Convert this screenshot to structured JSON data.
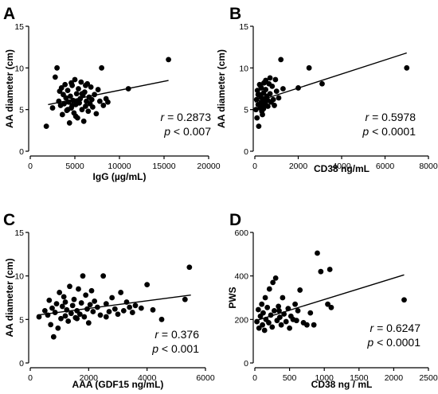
{
  "chart_data": [
    {
      "type": "scatter",
      "panel": "A",
      "xlabel": "IgG (µg/mL)",
      "ylabel": "AA diameter (cm)",
      "xlim": [
        0,
        20000
      ],
      "ylim": [
        0,
        15
      ],
      "xticks": [
        "0",
        "5000",
        "10000",
        "15000",
        "20000"
      ],
      "yticks": [
        "0",
        "5",
        "10",
        "15"
      ],
      "fit": {
        "x": [
          2000,
          15500
        ],
        "y": [
          5.6,
          8.5
        ]
      },
      "stat_r": "= 0.2873",
      "stat_p": "< 0.007",
      "points": [
        [
          1800,
          3.0
        ],
        [
          2500,
          5.2
        ],
        [
          2800,
          8.9
        ],
        [
          3000,
          10.0
        ],
        [
          3200,
          6.0
        ],
        [
          3300,
          7.2
        ],
        [
          3400,
          5.5
        ],
        [
          3500,
          7.6
        ],
        [
          3600,
          4.4
        ],
        [
          3700,
          6.8
        ],
        [
          3800,
          5.7
        ],
        [
          3900,
          8.0
        ],
        [
          4000,
          6.4
        ],
        [
          4100,
          4.9
        ],
        [
          4200,
          7.3
        ],
        [
          4300,
          5.9
        ],
        [
          4400,
          3.4
        ],
        [
          4500,
          6.6
        ],
        [
          4600,
          5.2
        ],
        [
          4700,
          7.9
        ],
        [
          4800,
          6.1
        ],
        [
          4900,
          4.6
        ],
        [
          5000,
          8.6
        ],
        [
          5100,
          5.6
        ],
        [
          5200,
          6.9
        ],
        [
          5300,
          4.0
        ],
        [
          5400,
          7.5
        ],
        [
          5500,
          5.8
        ],
        [
          5600,
          6.3
        ],
        [
          5700,
          8.3
        ],
        [
          5800,
          5.0
        ],
        [
          5900,
          6.7
        ],
        [
          6000,
          3.6
        ],
        [
          6100,
          7.1
        ],
        [
          6200,
          5.4
        ],
        [
          6300,
          6.0
        ],
        [
          6400,
          8.1
        ],
        [
          6500,
          4.8
        ],
        [
          6600,
          6.5
        ],
        [
          6700,
          5.7
        ],
        [
          6800,
          7.7
        ],
        [
          6900,
          6.2
        ],
        [
          7000,
          5.3
        ],
        [
          7200,
          6.8
        ],
        [
          7400,
          4.5
        ],
        [
          7600,
          7.4
        ],
        [
          7800,
          6.0
        ],
        [
          8000,
          10.0
        ],
        [
          8200,
          5.5
        ],
        [
          8500,
          6.3
        ],
        [
          8700,
          5.9
        ],
        [
          11000,
          7.5
        ],
        [
          15500,
          11.0
        ],
        [
          4200,
          5.0
        ],
        [
          4700,
          5.5
        ],
        [
          5300,
          6.0
        ],
        [
          5800,
          6.9
        ],
        [
          6200,
          7.9
        ],
        [
          4600,
          8.2
        ],
        [
          5100,
          4.2
        ]
      ]
    },
    {
      "type": "scatter",
      "panel": "B",
      "xlabel": "CD38 ng/mL",
      "ylabel": "AA diameter (cm)",
      "xlim": [
        0,
        8000
      ],
      "ylim": [
        0,
        15
      ],
      "xticks": [
        "0",
        "2000",
        "4000",
        "6000",
        "8000"
      ],
      "yticks": [
        "0",
        "5",
        "10",
        "15"
      ],
      "fit": {
        "x": [
          0,
          7000
        ],
        "y": [
          5.9,
          11.8
        ]
      },
      "stat_r": "= 0.5978",
      "stat_p": "< 0.0001",
      "points": [
        [
          50,
          5.0
        ],
        [
          80,
          6.2
        ],
        [
          100,
          4.0
        ],
        [
          120,
          7.3
        ],
        [
          150,
          5.6
        ],
        [
          180,
          3.0
        ],
        [
          200,
          6.8
        ],
        [
          220,
          8.0
        ],
        [
          250,
          5.2
        ],
        [
          280,
          6.5
        ],
        [
          300,
          7.6
        ],
        [
          320,
          4.8
        ],
        [
          350,
          6.0
        ],
        [
          380,
          5.5
        ],
        [
          400,
          7.0
        ],
        [
          420,
          8.2
        ],
        [
          450,
          6.3
        ],
        [
          480,
          5.8
        ],
        [
          500,
          7.4
        ],
        [
          550,
          6.6
        ],
        [
          600,
          5.4
        ],
        [
          650,
          8.1
        ],
        [
          700,
          6.9
        ],
        [
          750,
          5.9
        ],
        [
          800,
          7.8
        ],
        [
          850,
          6.2
        ],
        [
          900,
          5.5
        ],
        [
          950,
          8.6
        ],
        [
          1000,
          7.2
        ],
        [
          1100,
          6.4
        ],
        [
          1200,
          11.0
        ],
        [
          1300,
          7.5
        ],
        [
          2000,
          7.6
        ],
        [
          2500,
          10.0
        ],
        [
          3100,
          8.1
        ],
        [
          7000,
          10.0
        ],
        [
          250,
          7.9
        ],
        [
          400,
          5.1
        ],
        [
          600,
          6.1
        ],
        [
          700,
          8.8
        ],
        [
          150,
          6.8
        ],
        [
          300,
          5.9
        ],
        [
          500,
          8.5
        ],
        [
          350,
          4.4
        ]
      ]
    },
    {
      "type": "scatter",
      "panel": "C",
      "xlabel": "AAA (GDF15 ng/mL)",
      "ylabel": "AA diameter (cm)",
      "xlim": [
        0,
        6000
      ],
      "ylim": [
        0,
        15
      ],
      "xticks": [
        "0",
        "2000",
        "4000",
        "6000"
      ],
      "yticks": [
        "0",
        "5",
        "10",
        "15"
      ],
      "fit": {
        "x": [
          250,
          5500
        ],
        "y": [
          5.5,
          7.8
        ]
      },
      "stat_r": "= 0.376",
      "stat_p": "< 0.001",
      "points": [
        [
          300,
          5.3
        ],
        [
          500,
          6.0
        ],
        [
          600,
          5.5
        ],
        [
          650,
          7.2
        ],
        [
          700,
          4.4
        ],
        [
          750,
          6.3
        ],
        [
          800,
          3.0
        ],
        [
          850,
          5.8
        ],
        [
          900,
          6.8
        ],
        [
          950,
          4.0
        ],
        [
          1000,
          8.1
        ],
        [
          1050,
          5.1
        ],
        [
          1100,
          6.5
        ],
        [
          1150,
          7.6
        ],
        [
          1200,
          5.4
        ],
        [
          1250,
          6.1
        ],
        [
          1300,
          4.8
        ],
        [
          1350,
          8.8
        ],
        [
          1400,
          5.7
        ],
        [
          1450,
          6.6
        ],
        [
          1500,
          7.3
        ],
        [
          1550,
          5.2
        ],
        [
          1600,
          6.0
        ],
        [
          1650,
          8.5
        ],
        [
          1700,
          5.6
        ],
        [
          1750,
          6.9
        ],
        [
          1800,
          10.0
        ],
        [
          1850,
          5.3
        ],
        [
          1900,
          7.8
        ],
        [
          1950,
          6.2
        ],
        [
          2000,
          4.6
        ],
        [
          2050,
          6.7
        ],
        [
          2100,
          8.3
        ],
        [
          2150,
          5.9
        ],
        [
          2200,
          7.1
        ],
        [
          2300,
          6.4
        ],
        [
          2400,
          5.5
        ],
        [
          2500,
          10.0
        ],
        [
          2600,
          6.8
        ],
        [
          2700,
          5.9
        ],
        [
          2800,
          7.5
        ],
        [
          2900,
          6.2
        ],
        [
          3000,
          5.6
        ],
        [
          3100,
          8.1
        ],
        [
          3200,
          6.0
        ],
        [
          3300,
          7.0
        ],
        [
          3400,
          6.4
        ],
        [
          3500,
          5.8
        ],
        [
          3600,
          6.6
        ],
        [
          4000,
          9.0
        ],
        [
          4200,
          6.1
        ],
        [
          4500,
          5.0
        ],
        [
          5300,
          7.3
        ],
        [
          5450,
          11.0
        ],
        [
          1200,
          7.0
        ],
        [
          1600,
          5.1
        ],
        [
          2600,
          5.3
        ],
        [
          3800,
          6.3
        ]
      ]
    },
    {
      "type": "scatter",
      "panel": "D",
      "xlabel": "CD38 ng / mL",
      "ylabel": "PWS",
      "xlim": [
        0,
        2500
      ],
      "ylim": [
        0,
        600
      ],
      "xticks": [
        "0",
        "500",
        "1000",
        "1500",
        "2000",
        "2500"
      ],
      "yticks": [
        "0",
        "200",
        "400",
        "600"
      ],
      "fit": {
        "x": [
          20,
          2150
        ],
        "y": [
          195,
          405
        ]
      },
      "stat_r": "= 0.6247",
      "stat_p": "< 0.0001",
      "points": [
        [
          30,
          190
        ],
        [
          50,
          245
        ],
        [
          60,
          160
        ],
        [
          80,
          215
        ],
        [
          100,
          270
        ],
        [
          110,
          175
        ],
        [
          120,
          230
        ],
        [
          140,
          150
        ],
        [
          160,
          200
        ],
        [
          180,
          255
        ],
        [
          200,
          185
        ],
        [
          210,
          340
        ],
        [
          230,
          220
        ],
        [
          250,
          165
        ],
        [
          260,
          370
        ],
        [
          280,
          240
        ],
        [
          300,
          390
        ],
        [
          320,
          195
        ],
        [
          340,
          260
        ],
        [
          360,
          210
        ],
        [
          380,
          175
        ],
        [
          400,
          300
        ],
        [
          420,
          225
        ],
        [
          450,
          190
        ],
        [
          480,
          250
        ],
        [
          500,
          160
        ],
        [
          520,
          215
        ],
        [
          550,
          200
        ],
        [
          580,
          270
        ],
        [
          620,
          240
        ],
        [
          650,
          335
        ],
        [
          700,
          185
        ],
        [
          800,
          230
        ],
        [
          850,
          175
        ],
        [
          900,
          505
        ],
        [
          950,
          420
        ],
        [
          1050,
          270
        ],
        [
          1080,
          430
        ],
        [
          1100,
          255
        ],
        [
          2150,
          290
        ],
        [
          150,
          300
        ],
        [
          350,
          240
        ],
        [
          600,
          195
        ],
        [
          750,
          175
        ]
      ]
    }
  ]
}
